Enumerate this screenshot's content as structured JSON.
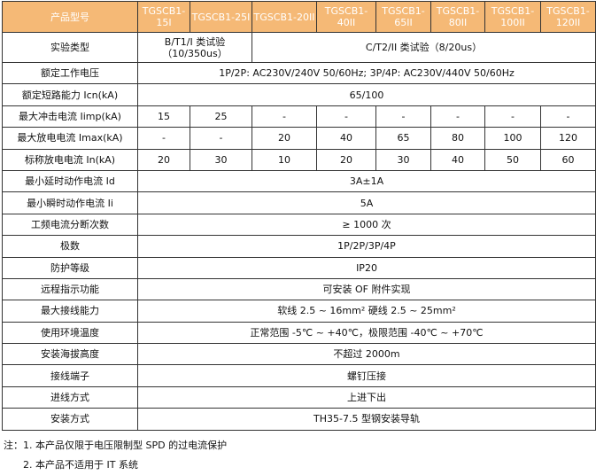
{
  "header": {
    "label": "产品型号",
    "models": [
      "TGSCB1-15I",
      "TGSCB1-25I",
      "TGSCB1-20II",
      "TGSCB1-40II",
      "TGSCB1-65II",
      "TGSCB1-80II",
      "TGSCB1-100II",
      "TGSCB1-120II"
    ]
  },
  "test_type": {
    "label": "实验类型",
    "class1": "B/T1/I 类试验（10/350us）",
    "class2": "C/T2/II 类试验（8/20us）"
  },
  "rated_voltage": {
    "label": "额定工作电压",
    "value": "1P/2P: AC230V/240V 50/60Hz; 3P/4P: AC230V/440V 50/60Hz"
  },
  "short_circuit": {
    "label": "额定短路能力 Icn(kA)",
    "value": "65/100"
  },
  "iimp": {
    "label": "最大冲击电流 Iimp(kA)",
    "values": [
      "15",
      "25",
      "-",
      "-",
      "-",
      "-",
      "-",
      "-"
    ]
  },
  "imax": {
    "label": "最大放电电流 Imax(kA)",
    "values": [
      "-",
      "-",
      "20",
      "40",
      "65",
      "80",
      "100",
      "120"
    ]
  },
  "in": {
    "label": "标称放电电流 In(kA)",
    "values": [
      "20",
      "30",
      "10",
      "20",
      "30",
      "40",
      "50",
      "60"
    ]
  },
  "rows": [
    {
      "label": "最小延时动作电流 Id",
      "value": "3A±1A"
    },
    {
      "label": "最小瞬时动作电流 Ii",
      "value": "5A"
    },
    {
      "label": "工频电流分断次数",
      "value": "≥ 1000 次"
    },
    {
      "label": "极数",
      "value": "1P/2P/3P/4P"
    },
    {
      "label": "防护等级",
      "value": "IP20"
    },
    {
      "label": "远程指示功能",
      "value": "可安装 OF 附件实现"
    },
    {
      "label": "最大接线能力",
      "value": "软线 2.5 ~ 16mm² 硬线 2.5 ~ 25mm²"
    },
    {
      "label": "使用环境温度",
      "value": "正常范围 -5℃ ~ +40℃，极限范围 -40℃ ~ +70℃"
    },
    {
      "label": "安装海拔高度",
      "value": "不超过 2000m"
    },
    {
      "label": "接线端子",
      "value": "螺钉压接"
    },
    {
      "label": "进线方式",
      "value": "上进下出"
    },
    {
      "label": "安装方式",
      "value": "TH35-7.5 型钢安装导轨"
    }
  ],
  "notes": [
    "注：1. 本产品仅限于电压限制型 SPD 的过电流保护",
    "2. 本产品不适用于 IT 系统"
  ],
  "colors": {
    "header_bg": "#f5b976",
    "header_text": "#ffffff"
  }
}
